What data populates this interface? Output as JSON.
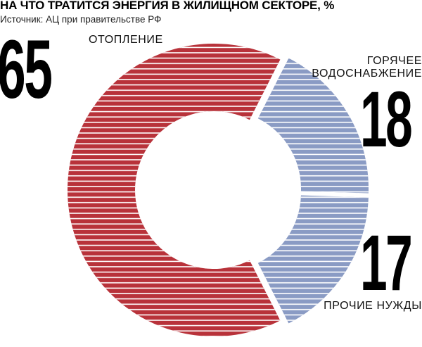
{
  "header": {
    "title": "НА ЧТО ТРАТИТСЯ ЭНЕРГИЯ В ЖИЛИЩНОМ СЕКТОРЕ, %",
    "source": "Источник: АЦ при правительстве РФ"
  },
  "labels": {
    "heating_value": "65",
    "heating_name": "ОТОПЛЕНИЕ",
    "water_value": "18",
    "water_name_line1": "ГОРЯЧЕЕ",
    "water_name_line2": "ВОДОСНАБЖЕНИЕ",
    "other_value": "17",
    "other_name": "ПРОЧИЕ НУЖДЫ"
  },
  "chart_data": {
    "type": "pie",
    "variant": "donut",
    "title": "НА ЧТО ТРАТИТСЯ ЭНЕРГИЯ В ЖИЛИЩНОМ СЕКТОРЕ, %",
    "unit": "%",
    "categories": [
      "ОТОПЛЕНИЕ",
      "ГОРЯЧЕЕ ВОДОСНАБЖЕНИЕ",
      "ПРОЧИЕ НУЖДЫ"
    ],
    "values": [
      65,
      18,
      17
    ],
    "colors": [
      "#b8323a",
      "#8a9bc4",
      "#8a9bc4"
    ],
    "stripe_color": "#ffffff",
    "legend": "none"
  }
}
